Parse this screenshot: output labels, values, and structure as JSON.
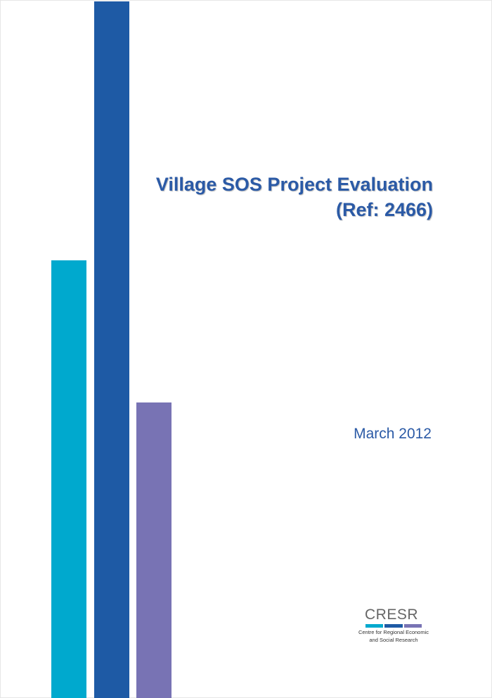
{
  "cover": {
    "title_line1": "Village SOS Project Evaluation",
    "title_line2": "(Ref: 2466)",
    "date": "March 2012"
  },
  "logo": {
    "wordmark": "CRESR",
    "tagline_line1": "Centre for Regional Economic",
    "tagline_line2": "and Social Research"
  },
  "colors": {
    "title_text": "#2B5AA6",
    "bar_cyan": "#00A9CE",
    "bar_blue": "#1E5AA5",
    "bar_purple": "#7873B4",
    "logo_word": "#666666"
  }
}
